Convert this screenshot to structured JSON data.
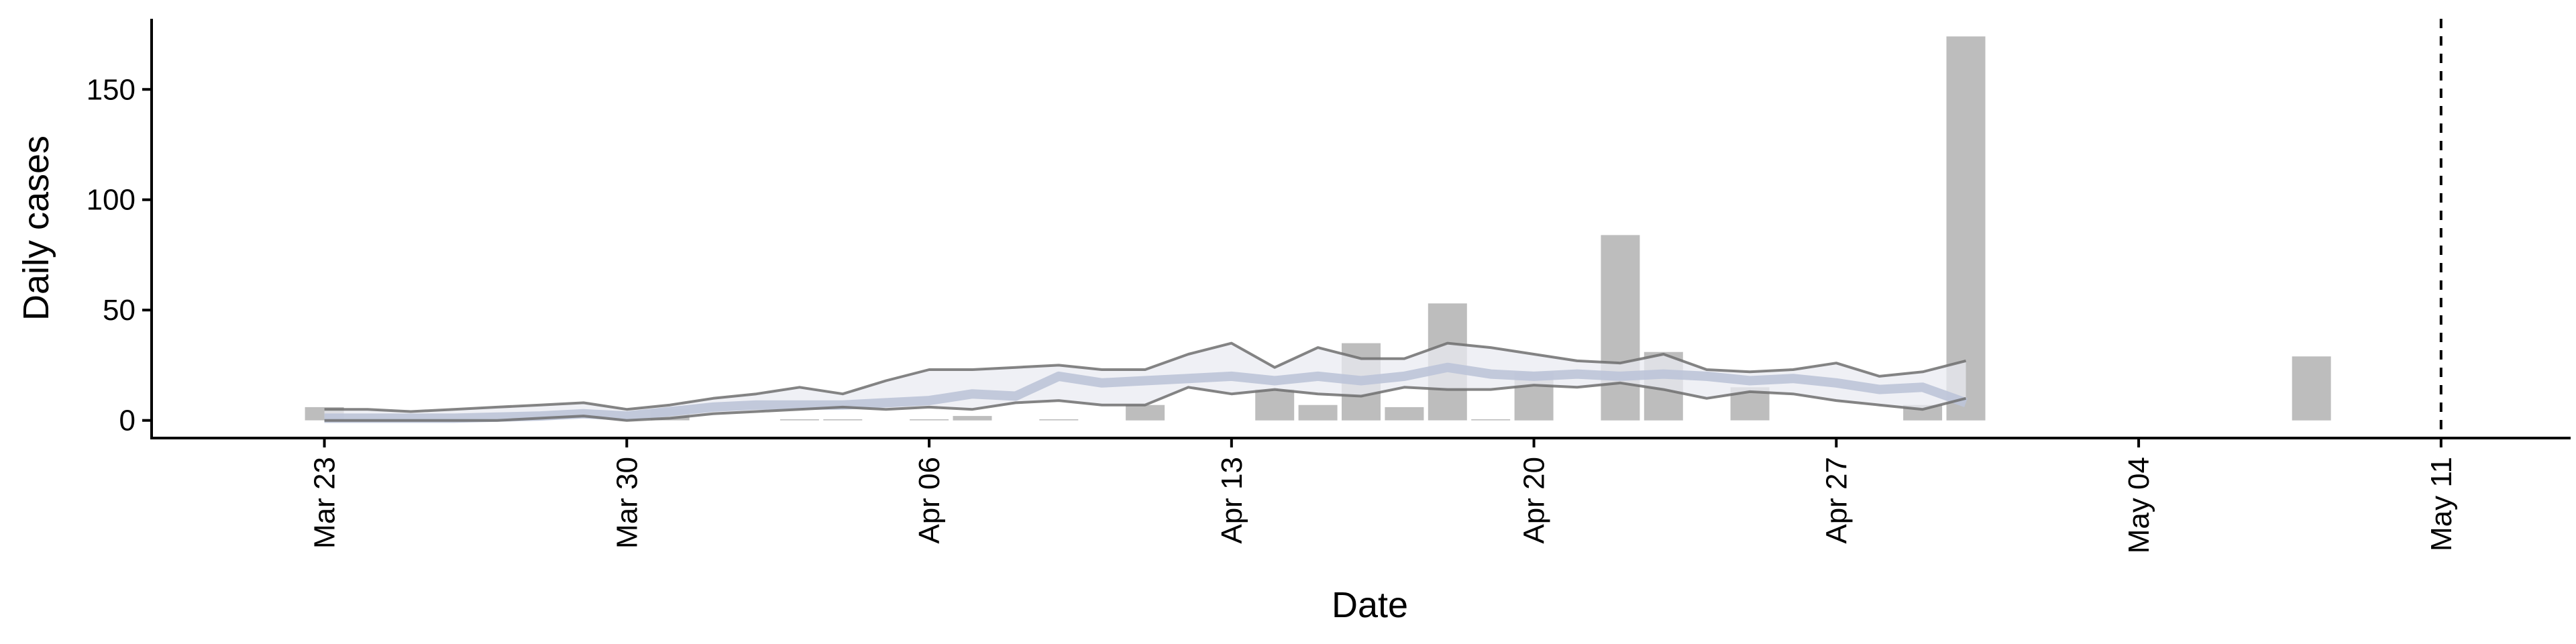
{
  "chart_data": {
    "type": "bar",
    "xlabel": "Date",
    "ylabel": "Daily cases",
    "x_tick_labels": [
      "Mar 23",
      "Mar 30",
      "Apr 06",
      "Apr 13",
      "Apr 20",
      "Apr 27",
      "May 04",
      "May 11"
    ],
    "x_tick_dates": [
      "2020-03-23",
      "2020-03-30",
      "2020-04-06",
      "2020-04-13",
      "2020-04-20",
      "2020-04-27",
      "2020-05-04",
      "2020-05-11"
    ],
    "y_ticks": [
      0,
      50,
      100,
      150
    ],
    "ylim": [
      -8,
      182
    ],
    "xlim": [
      "2020-03-19",
      "2020-05-14"
    ],
    "grid": false,
    "vline": {
      "date": "2020-05-11",
      "style": "dashed"
    },
    "colors": {
      "bars": "#bdbdbd",
      "band": "#e9ebf2",
      "median": "#bcc4d8",
      "upper": "#6f6f6f",
      "lower": "#6f6f6f"
    },
    "bars": [
      {
        "date": "2020-03-23",
        "value": 6
      },
      {
        "date": "2020-03-31",
        "value": 5
      },
      {
        "date": "2020-04-03",
        "value": 0.5
      },
      {
        "date": "2020-04-04",
        "value": 0.5
      },
      {
        "date": "2020-04-06",
        "value": 0.5
      },
      {
        "date": "2020-04-07",
        "value": 2
      },
      {
        "date": "2020-04-09",
        "value": 0.5
      },
      {
        "date": "2020-04-11",
        "value": 7
      },
      {
        "date": "2020-04-14",
        "value": 14
      },
      {
        "date": "2020-04-15",
        "value": 7
      },
      {
        "date": "2020-04-16",
        "value": 35
      },
      {
        "date": "2020-04-17",
        "value": 6
      },
      {
        "date": "2020-04-18",
        "value": 53
      },
      {
        "date": "2020-04-19",
        "value": 0.5
      },
      {
        "date": "2020-04-20",
        "value": 22
      },
      {
        "date": "2020-04-22",
        "value": 84
      },
      {
        "date": "2020-04-23",
        "value": 31
      },
      {
        "date": "2020-04-25",
        "value": 15
      },
      {
        "date": "2020-04-29",
        "value": 7
      },
      {
        "date": "2020-04-30",
        "value": 174
      },
      {
        "date": "2020-05-08",
        "value": 29
      }
    ],
    "estimate": {
      "dates": [
        "2020-03-23",
        "2020-03-24",
        "2020-03-25",
        "2020-03-26",
        "2020-03-27",
        "2020-03-28",
        "2020-03-29",
        "2020-03-30",
        "2020-03-31",
        "2020-04-01",
        "2020-04-02",
        "2020-04-03",
        "2020-04-04",
        "2020-04-05",
        "2020-04-06",
        "2020-04-07",
        "2020-04-08",
        "2020-04-09",
        "2020-04-10",
        "2020-04-11",
        "2020-04-12",
        "2020-04-13",
        "2020-04-14",
        "2020-04-15",
        "2020-04-16",
        "2020-04-17",
        "2020-04-18",
        "2020-04-19",
        "2020-04-20",
        "2020-04-21",
        "2020-04-22",
        "2020-04-23",
        "2020-04-24",
        "2020-04-25",
        "2020-04-26",
        "2020-04-27",
        "2020-04-28",
        "2020-04-29",
        "2020-04-30"
      ],
      "median": [
        1,
        1,
        1,
        1,
        1.5,
        2,
        3,
        2,
        4,
        6,
        7,
        7,
        7,
        8,
        9,
        12,
        11,
        20,
        17,
        18,
        19,
        20,
        18,
        20,
        18,
        20,
        24,
        21,
        20,
        21,
        20,
        21,
        20,
        18,
        19,
        17,
        14,
        15,
        8
      ],
      "upper": [
        5,
        5,
        4,
        5,
        6,
        7,
        8,
        5,
        7,
        10,
        12,
        15,
        12,
        18,
        23,
        23,
        24,
        25,
        23,
        23,
        30,
        35,
        24,
        33,
        28,
        28,
        35,
        33,
        30,
        27,
        26,
        30,
        23,
        22,
        23,
        26,
        20,
        22,
        27
      ],
      "lower": [
        0,
        0,
        0,
        0,
        0,
        1,
        2,
        0,
        1,
        3,
        4,
        5,
        6,
        5,
        6,
        5,
        8,
        9,
        7,
        7,
        15,
        12,
        14,
        12,
        11,
        15,
        14,
        14,
        16,
        15,
        17,
        14,
        10,
        13,
        12,
        9,
        7,
        5,
        10
      ]
    }
  }
}
